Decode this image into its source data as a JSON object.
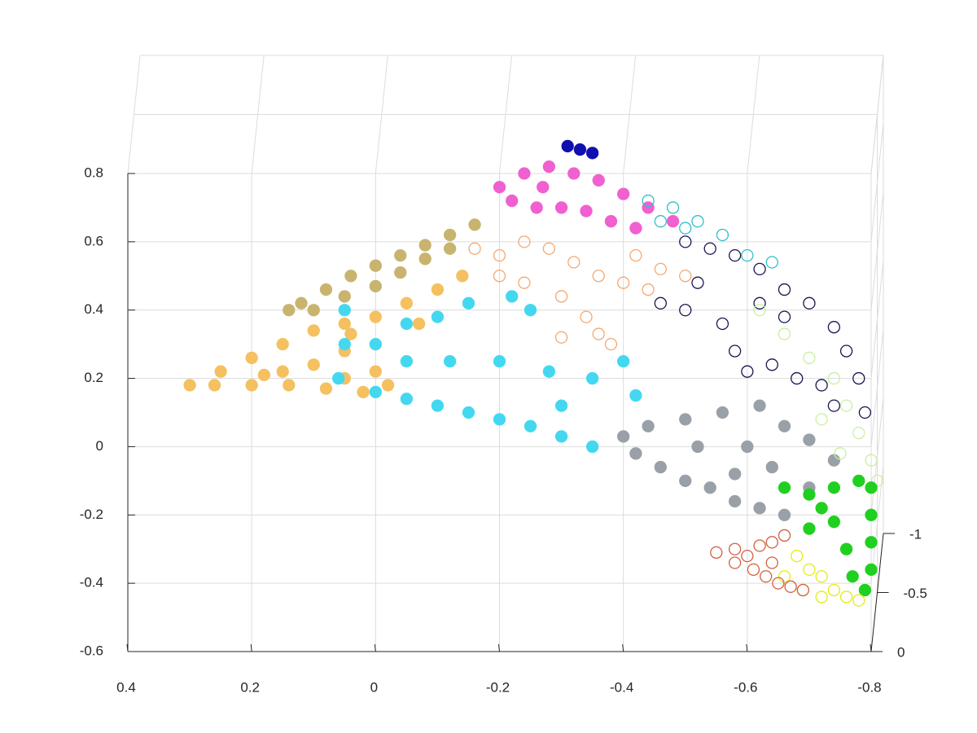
{
  "chart_data": {
    "type": "scatter3d",
    "xlim": [
      -0.8,
      0.4
    ],
    "x_reversed": true,
    "xticks": [
      0.4,
      0.2,
      0,
      -0.2,
      -0.4,
      -0.6,
      -0.8
    ],
    "ylim": [
      -0.6,
      0.8
    ],
    "yticks": [
      0.8,
      0.6,
      0.4,
      0.2,
      0,
      -0.2,
      -0.4,
      -0.6
    ],
    "zlim": [
      -1,
      0
    ],
    "zticks": [
      -1,
      -0.5,
      0
    ],
    "grid": true,
    "series": [
      {
        "color": "#c8b46e",
        "filled": true,
        "x": [
          0.12,
          0.08,
          0.04,
          0.0,
          -0.04,
          -0.08,
          -0.12,
          -0.16,
          0.1,
          0.05,
          0.0,
          -0.04,
          -0.08,
          -0.12,
          0.14
        ],
        "y": [
          0.42,
          0.46,
          0.5,
          0.53,
          0.56,
          0.59,
          0.62,
          0.65,
          0.4,
          0.44,
          0.47,
          0.51,
          0.55,
          0.58,
          0.4
        ]
      },
      {
        "color": "#f5c060",
        "filled": true,
        "x": [
          0.3,
          0.26,
          0.2,
          0.14,
          0.08,
          0.02,
          0.25,
          0.2,
          0.15,
          0.1,
          0.05,
          0.0,
          -0.05,
          -0.1,
          -0.14,
          0.15,
          0.1,
          0.05,
          0.0,
          0.05,
          0.0,
          0.04,
          -0.07,
          -0.02,
          0.18
        ],
        "y": [
          0.18,
          0.18,
          0.18,
          0.18,
          0.17,
          0.16,
          0.22,
          0.26,
          0.3,
          0.34,
          0.36,
          0.38,
          0.42,
          0.46,
          0.5,
          0.22,
          0.24,
          0.28,
          0.3,
          0.2,
          0.22,
          0.33,
          0.36,
          0.18,
          0.21
        ]
      },
      {
        "color": "#f4a870",
        "filled": false,
        "x": [
          -0.16,
          -0.2,
          -0.24,
          -0.28,
          -0.32,
          -0.36,
          -0.4,
          -0.44,
          -0.3,
          -0.34,
          -0.3,
          -0.36,
          -0.24,
          -0.2,
          -0.46,
          -0.5,
          -0.42,
          -0.38
        ],
        "y": [
          0.58,
          0.56,
          0.6,
          0.58,
          0.54,
          0.5,
          0.48,
          0.46,
          0.44,
          0.38,
          0.32,
          0.33,
          0.48,
          0.5,
          0.52,
          0.5,
          0.56,
          0.3
        ]
      },
      {
        "color": "#f060d0",
        "filled": true,
        "x": [
          -0.2,
          -0.24,
          -0.28,
          -0.32,
          -0.36,
          -0.4,
          -0.44,
          -0.48,
          -0.22,
          -0.26,
          -0.3,
          -0.34,
          -0.38,
          -0.42,
          -0.27
        ],
        "y": [
          0.76,
          0.8,
          0.82,
          0.8,
          0.78,
          0.74,
          0.7,
          0.66,
          0.72,
          0.7,
          0.7,
          0.69,
          0.66,
          0.64,
          0.76
        ]
      },
      {
        "color": "#44d8f0",
        "filled": true,
        "x": [
          0.05,
          0.05,
          0.06,
          0.0,
          -0.05,
          -0.1,
          -0.15,
          -0.2,
          -0.25,
          -0.3,
          -0.35,
          0.0,
          -0.05,
          -0.1,
          -0.15,
          -0.22,
          -0.25,
          -0.05,
          -0.12,
          -0.2,
          -0.28,
          -0.35,
          -0.4,
          -0.42,
          -0.3
        ],
        "y": [
          0.4,
          0.3,
          0.2,
          0.16,
          0.14,
          0.12,
          0.1,
          0.08,
          0.06,
          0.03,
          0.0,
          0.3,
          0.36,
          0.38,
          0.42,
          0.44,
          0.4,
          0.25,
          0.25,
          0.25,
          0.22,
          0.2,
          0.25,
          0.15,
          0.12
        ]
      },
      {
        "color": "#30c0c8",
        "filled": false,
        "x": [
          -0.44,
          -0.48,
          -0.52,
          -0.56,
          -0.6,
          -0.64,
          -0.46,
          -0.5
        ],
        "y": [
          0.72,
          0.7,
          0.66,
          0.62,
          0.56,
          0.54,
          0.66,
          0.64
        ]
      },
      {
        "color": "#1a1450",
        "filled": false,
        "x": [
          -0.5,
          -0.54,
          -0.58,
          -0.62,
          -0.66,
          -0.7,
          -0.74,
          -0.76,
          -0.78,
          -0.79,
          -0.46,
          -0.5,
          -0.56,
          -0.58,
          -0.6,
          -0.64,
          -0.68,
          -0.72,
          -0.74,
          -0.62,
          -0.66,
          -0.52
        ],
        "y": [
          0.6,
          0.58,
          0.56,
          0.52,
          0.46,
          0.42,
          0.35,
          0.28,
          0.2,
          0.1,
          0.42,
          0.4,
          0.36,
          0.28,
          0.22,
          0.24,
          0.2,
          0.18,
          0.12,
          0.42,
          0.38,
          0.48
        ]
      },
      {
        "color": "#9aa0a8",
        "filled": true,
        "x": [
          -0.42,
          -0.46,
          -0.5,
          -0.54,
          -0.58,
          -0.62,
          -0.66,
          -0.4,
          -0.44,
          -0.5,
          -0.56,
          -0.62,
          -0.66,
          -0.7,
          -0.74,
          -0.7,
          -0.6,
          -0.52,
          -0.58,
          -0.64
        ],
        "y": [
          -0.02,
          -0.06,
          -0.1,
          -0.12,
          -0.16,
          -0.18,
          -0.2,
          0.03,
          0.06,
          0.08,
          0.1,
          0.12,
          0.06,
          0.02,
          -0.04,
          -0.12,
          0.0,
          0.0,
          -0.08,
          -0.06
        ]
      },
      {
        "color": "#c8f0a0",
        "filled": false,
        "x": [
          -0.62,
          -0.66,
          -0.7,
          -0.74,
          -0.76,
          -0.78,
          -0.8,
          -0.81,
          -0.72,
          -0.75
        ],
        "y": [
          0.4,
          0.33,
          0.26,
          0.2,
          0.12,
          0.04,
          -0.04,
          -0.1,
          0.08,
          -0.02
        ]
      },
      {
        "color": "#20d020",
        "filled": true,
        "x": [
          -0.66,
          -0.7,
          -0.74,
          -0.78,
          -0.8,
          -0.8,
          -0.8,
          -0.8,
          -0.79,
          -0.74,
          -0.7,
          -0.76,
          -0.77,
          -0.72
        ],
        "y": [
          -0.12,
          -0.14,
          -0.12,
          -0.1,
          -0.12,
          -0.2,
          -0.28,
          -0.36,
          -0.42,
          -0.22,
          -0.24,
          -0.3,
          -0.38,
          -0.18
        ]
      },
      {
        "color": "#e4ec10",
        "filled": false,
        "x": [
          -0.68,
          -0.7,
          -0.72,
          -0.74,
          -0.76,
          -0.78,
          -0.72,
          -0.66,
          -0.69
        ],
        "y": [
          -0.32,
          -0.36,
          -0.38,
          -0.42,
          -0.44,
          -0.45,
          -0.44,
          -0.38,
          -0.42
        ]
      },
      {
        "color": "#d06040",
        "filled": false,
        "x": [
          -0.55,
          -0.58,
          -0.6,
          -0.62,
          -0.64,
          -0.66,
          -0.58,
          -0.61,
          -0.63,
          -0.65,
          -0.67,
          -0.69,
          -0.64
        ],
        "y": [
          -0.31,
          -0.3,
          -0.32,
          -0.29,
          -0.28,
          -0.26,
          -0.34,
          -0.36,
          -0.38,
          -0.4,
          -0.41,
          -0.42,
          -0.34
        ]
      },
      {
        "color": "#1010b0",
        "filled": true,
        "x": [
          -0.31,
          -0.33,
          -0.35
        ],
        "y": [
          0.88,
          0.87,
          0.86
        ]
      }
    ]
  }
}
